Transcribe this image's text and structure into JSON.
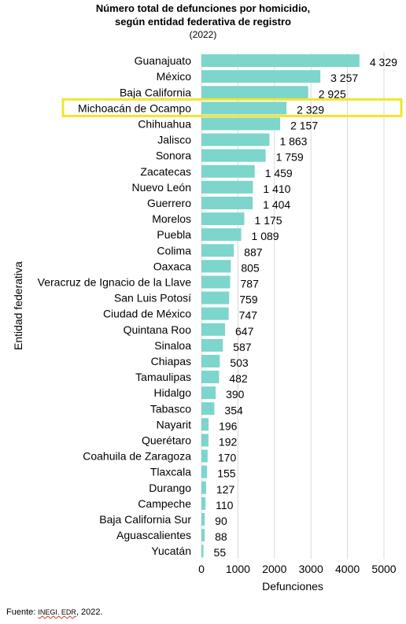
{
  "chart_data": {
    "type": "bar",
    "orientation": "horizontal",
    "title": "Número total de defunciones por homicidio,",
    "title_line2": "según entidad federativa de registro",
    "subtitle": "(2022)",
    "xlabel": "Defunciones",
    "ylabel": "Entidad federativa",
    "xlim": [
      0,
      5000
    ],
    "x_ticks": [
      "0",
      "1000",
      "2000",
      "3000",
      "4000",
      "5000"
    ],
    "x_tick_values": [
      0,
      1000,
      2000,
      3000,
      4000,
      5000
    ],
    "grid": true,
    "bar_color": "#7dd5cc",
    "highlight_color": "#f2e627",
    "highlight_category": "Michoacán de Ocampo",
    "categories": [
      "Guanajuato",
      "México",
      "Baja California",
      "Michoacán de Ocampo",
      "Chihuahua",
      "Jalisco",
      "Sonora",
      "Zacatecas",
      "Nuevo León",
      "Guerrero",
      "Morelos",
      "Puebla",
      "Colima",
      "Oaxaca",
      "Veracruz de Ignacio de la Llave",
      "San Luis Potosí",
      "Ciudad de México",
      "Quintana Roo",
      "Sinaloa",
      "Chiapas",
      "Tamaulipas",
      "Hidalgo",
      "Tabasco",
      "Nayarit",
      "Querétaro",
      "Coahuila de Zaragoza",
      "Tlaxcala",
      "Durango",
      "Campeche",
      "Baja California Sur",
      "Aguascalientes",
      "Yucatán"
    ],
    "values": [
      4329,
      3257,
      2925,
      2329,
      2157,
      1863,
      1759,
      1459,
      1410,
      1404,
      1175,
      1089,
      887,
      805,
      787,
      759,
      747,
      647,
      587,
      503,
      482,
      390,
      354,
      196,
      192,
      170,
      155,
      127,
      110,
      90,
      88,
      55
    ],
    "value_labels": [
      "4 329",
      "3 257",
      "2 925",
      "2 329",
      "2 157",
      "1 863",
      "1 759",
      "1 459",
      "1 410",
      "1 404",
      "1 175",
      "1 089",
      "887",
      "805",
      "787",
      "759",
      "747",
      "647",
      "587",
      "503",
      "482",
      "390",
      "354",
      "196",
      "192",
      "170",
      "155",
      "127",
      "110",
      "90",
      "88",
      "55"
    ]
  },
  "source": {
    "prefix": "Fuente: ",
    "org": "INEGI. EDR",
    "suffix": ", 2022."
  }
}
